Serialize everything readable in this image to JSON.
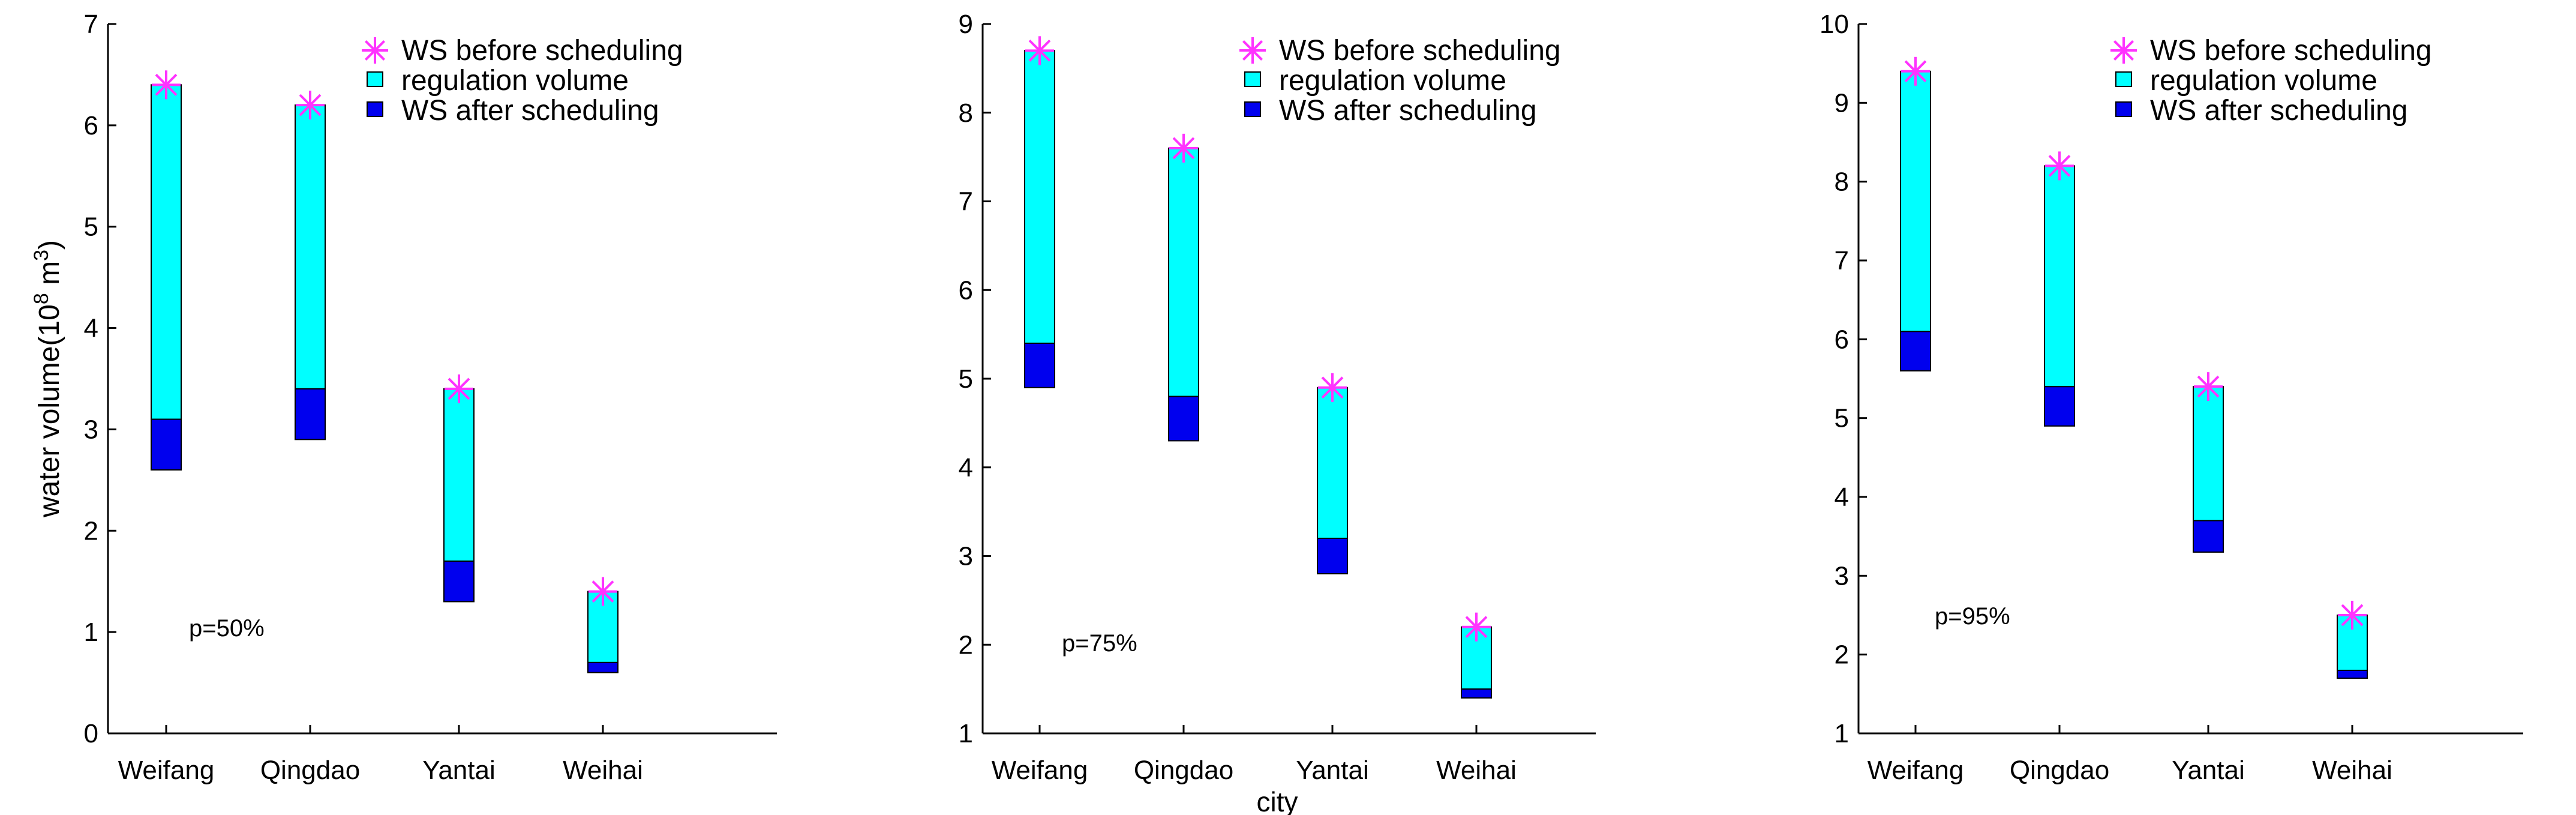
{
  "colors": {
    "before_marker": "#ff33ff",
    "regulation": "#00ffff",
    "after": "#0000ee",
    "axis": "#000000"
  },
  "chart_data": [
    {
      "type": "bar",
      "categories": [
        "Weifang",
        "Qingdao",
        "Yantai",
        "Weihai"
      ],
      "ylim": [
        0,
        7
      ],
      "yticks": [
        "0",
        "1",
        "2",
        "3",
        "4",
        "5",
        "6",
        "7"
      ],
      "ylabel_main": "water volume(10",
      "ylabel_sup1": "8",
      "ylabel_mid": " m",
      "ylabel_sup2": "3",
      "ylabel_end": ")",
      "xlabel": "",
      "annotation": "p=50%",
      "legend": [
        "WS before scheduling",
        "regulation volume",
        "WS after scheduling"
      ],
      "legend_position": "top-right",
      "series": [
        {
          "name": "WS before scheduling",
          "values": [
            6.4,
            6.2,
            3.4,
            1.4
          ]
        },
        {
          "name": "regulation volume",
          "low": [
            3.1,
            3.4,
            1.7,
            0.7
          ],
          "high": [
            6.4,
            6.2,
            3.4,
            1.4
          ]
        },
        {
          "name": "WS after scheduling",
          "low": [
            2.6,
            2.9,
            1.3,
            0.6
          ],
          "high": [
            3.1,
            3.4,
            1.7,
            0.7
          ]
        }
      ]
    },
    {
      "type": "bar",
      "categories": [
        "Weifang",
        "Qingdao",
        "Yantai",
        "Weihai"
      ],
      "ylim": [
        1,
        9
      ],
      "yticks": [
        "1",
        "2",
        "3",
        "4",
        "5",
        "6",
        "7",
        "8",
        "9"
      ],
      "xlabel": "city",
      "annotation": "p=75%",
      "legend": [
        "WS before scheduling",
        "regulation volume",
        "WS after scheduling"
      ],
      "legend_position": "top-right",
      "series": [
        {
          "name": "WS before scheduling",
          "values": [
            8.7,
            7.6,
            4.9,
            2.2
          ]
        },
        {
          "name": "regulation volume",
          "low": [
            5.4,
            4.8,
            3.2,
            1.5
          ],
          "high": [
            8.7,
            7.6,
            4.9,
            2.2
          ]
        },
        {
          "name": "WS after scheduling",
          "low": [
            4.9,
            4.3,
            2.8,
            1.4
          ],
          "high": [
            5.4,
            4.8,
            3.2,
            1.5
          ]
        }
      ]
    },
    {
      "type": "bar",
      "categories": [
        "Weifang",
        "Qingdao",
        "Yantai",
        "Weihai"
      ],
      "ylim": [
        1,
        10
      ],
      "yticks": [
        "1",
        "2",
        "3",
        "4",
        "5",
        "6",
        "7",
        "8",
        "9",
        "10"
      ],
      "xlabel": "",
      "annotation": "p=95%",
      "legend": [
        "WS before scheduling",
        "regulation volume",
        "WS after scheduling"
      ],
      "legend_position": "top-right",
      "series": [
        {
          "name": "WS before scheduling",
          "values": [
            9.4,
            8.2,
            5.4,
            2.5
          ]
        },
        {
          "name": "regulation volume",
          "low": [
            6.1,
            5.4,
            3.7,
            1.8
          ],
          "high": [
            9.4,
            8.2,
            5.4,
            2.5
          ]
        },
        {
          "name": "WS after scheduling",
          "low": [
            5.6,
            4.9,
            3.3,
            1.7
          ],
          "high": [
            6.1,
            5.4,
            3.7,
            1.8
          ]
        }
      ]
    }
  ]
}
